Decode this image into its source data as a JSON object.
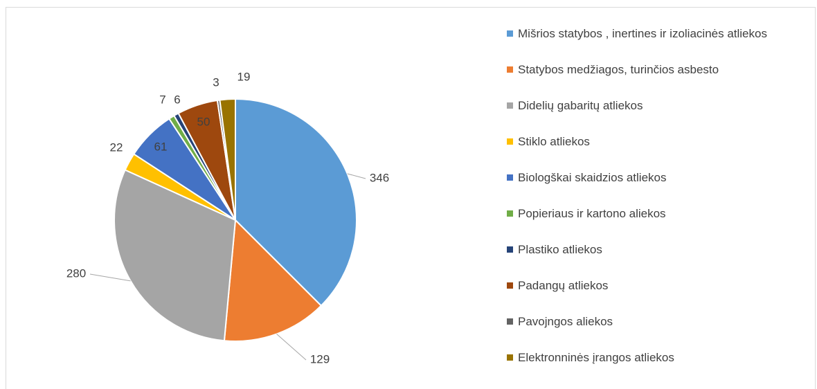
{
  "chart_data": {
    "type": "pie",
    "categories": [
      "Mišrios statybos , inertines ir izoliacinės atliekos",
      "Statybos medžiagos, turinčios asbesto",
      "Didelių gabaritų atliekos",
      "Stiklo atliekos",
      "Biologškai skaidzios atliekos",
      "Popieriaus ir kartono aliekos",
      "Plastiko atliekos",
      "Padangų atliekos",
      "Pavojngos aliekos",
      "Elektronninės įrangos atliekos"
    ],
    "values": [
      346,
      129,
      280,
      22,
      61,
      7,
      6,
      50,
      3,
      19
    ],
    "colors": [
      "#5b9bd5",
      "#ed7d31",
      "#a5a5a5",
      "#ffc000",
      "#4472c4",
      "#70ad47",
      "#264478",
      "#9e480e",
      "#636363",
      "#997300"
    ],
    "legend": "right"
  }
}
